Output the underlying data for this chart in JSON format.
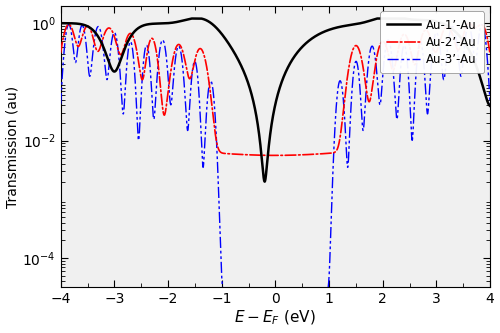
{
  "title": "",
  "xlabel": "$E - E_F$ (eV)",
  "ylabel": "Transmission (au)",
  "xlim": [
    -4,
    4
  ],
  "legend": [
    "Au-1’-Au",
    "Au-2’-Au",
    "Au-3’-Au"
  ],
  "line_colors": [
    "black",
    "red",
    "blue"
  ],
  "background_color": "#f5f5f5"
}
